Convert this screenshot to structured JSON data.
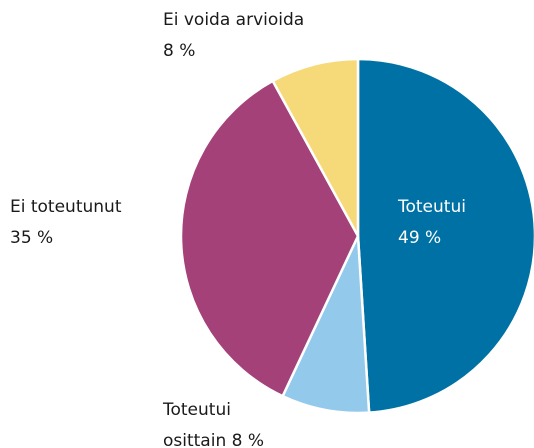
{
  "chart_data": {
    "type": "pie",
    "categories": [
      "Toteutui",
      "Toteutui osittain",
      "Ei toteutunut",
      "Ei voida arvioida"
    ],
    "values": [
      49,
      8,
      35,
      8
    ],
    "value_labels": [
      "49 %",
      "8 %",
      "35 %",
      "8 %"
    ],
    "colors": [
      "#0071a4",
      "#93c9ea",
      "#a44179",
      "#f6da7a"
    ]
  }
}
